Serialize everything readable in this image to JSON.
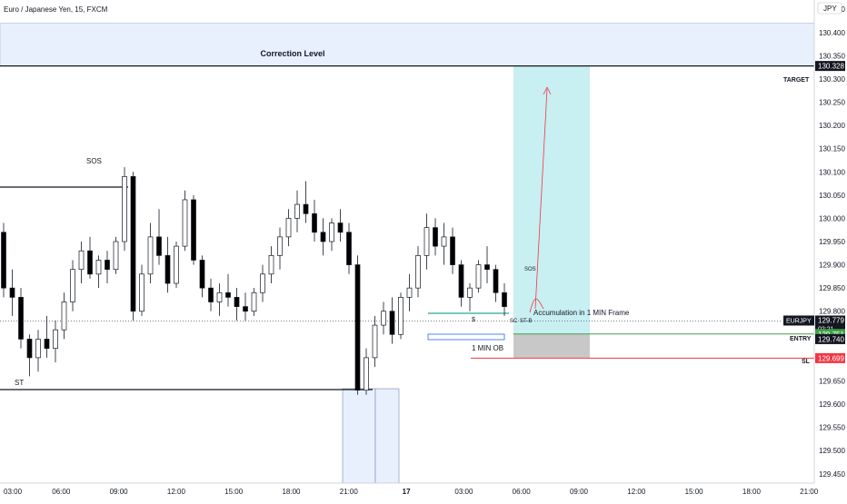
{
  "header": {
    "symbol_title": "Euro / Japanese Yen, 15, FXCM"
  },
  "currency_label": "JPY",
  "colors": {
    "accent": "#2962ff",
    "price_line": "#131722",
    "entry_green": "#43a047",
    "stop_red": "#f23645",
    "profit_zone": "#c8eff2",
    "loss_zone": "#c8c8c8",
    "correction_zone": "#e8f0fd"
  },
  "chart_data": {
    "type": "candlestick",
    "title": "Euro / Japanese Yen, 15, FXCM",
    "ylim": [
      129.43,
      130.47
    ],
    "ylabel": "JPY",
    "y_ticks": [
      "130.450",
      "130.400",
      "130.350",
      "130.300",
      "130.250",
      "130.200",
      "130.150",
      "130.100",
      "130.050",
      "130.000",
      "129.950",
      "129.900",
      "129.850",
      "129.800",
      "129.750",
      "129.700",
      "129.650",
      "129.600",
      "129.550",
      "129.500",
      "129.450"
    ],
    "x_ticks": [
      "03:00",
      "06:00",
      "09:00",
      "12:00",
      "15:00",
      "18:00",
      "21:00",
      "17",
      "03:00",
      "06:00",
      "09:00",
      "12:00",
      "15:00",
      "18:00",
      "21:00"
    ],
    "candles_ohlc": [
      [
        129.97,
        129.99,
        129.83,
        129.85
      ],
      [
        129.85,
        129.89,
        129.79,
        129.83
      ],
      [
        129.83,
        129.85,
        129.72,
        129.74
      ],
      [
        129.74,
        129.75,
        129.66,
        129.7
      ],
      [
        129.7,
        129.76,
        129.67,
        129.74
      ],
      [
        129.74,
        129.79,
        129.7,
        129.72
      ],
      [
        129.72,
        129.78,
        129.69,
        129.76
      ],
      [
        129.76,
        129.84,
        129.74,
        129.82
      ],
      [
        129.82,
        129.91,
        129.8,
        129.89
      ],
      [
        129.89,
        129.95,
        129.86,
        129.93
      ],
      [
        129.93,
        129.96,
        129.87,
        129.88
      ],
      [
        129.88,
        129.92,
        129.85,
        129.91
      ],
      [
        129.91,
        129.93,
        129.86,
        129.89
      ],
      [
        129.89,
        129.96,
        129.88,
        129.95
      ],
      [
        129.95,
        130.11,
        129.93,
        130.09
      ],
      [
        130.09,
        130.1,
        129.78,
        129.8
      ],
      [
        129.8,
        129.9,
        129.79,
        129.88
      ],
      [
        129.88,
        129.99,
        129.86,
        129.96
      ],
      [
        129.96,
        130.02,
        129.9,
        129.92
      ],
      [
        129.92,
        129.96,
        129.84,
        129.86
      ],
      [
        129.86,
        129.95,
        129.85,
        129.94
      ],
      [
        129.94,
        130.06,
        129.93,
        130.04
      ],
      [
        130.04,
        130.05,
        129.9,
        129.91
      ],
      [
        129.91,
        129.92,
        129.83,
        129.85
      ],
      [
        129.85,
        129.87,
        129.8,
        129.82
      ],
      [
        129.82,
        129.86,
        129.79,
        129.84
      ],
      [
        129.84,
        129.88,
        129.81,
        129.83
      ],
      [
        129.83,
        129.85,
        129.78,
        129.81
      ],
      [
        129.81,
        129.84,
        129.78,
        129.8
      ],
      [
        129.8,
        129.85,
        129.79,
        129.84
      ],
      [
        129.84,
        129.9,
        129.82,
        129.88
      ],
      [
        129.88,
        129.94,
        129.86,
        129.92
      ],
      [
        129.92,
        129.98,
        129.89,
        129.96
      ],
      [
        129.96,
        130.02,
        129.94,
        130.0
      ],
      [
        130.0,
        130.06,
        129.97,
        130.03
      ],
      [
        130.03,
        130.08,
        129.99,
        130.01
      ],
      [
        130.01,
        130.04,
        129.95,
        129.97
      ],
      [
        129.97,
        130.0,
        129.92,
        129.95
      ],
      [
        129.95,
        130.0,
        129.93,
        129.99
      ],
      [
        129.99,
        130.02,
        129.95,
        129.97
      ],
      [
        129.97,
        129.99,
        129.88,
        129.9
      ],
      [
        129.9,
        129.92,
        129.62,
        129.63
      ],
      [
        129.63,
        129.72,
        129.62,
        129.7
      ],
      [
        129.7,
        129.79,
        129.68,
        129.77
      ],
      [
        129.77,
        129.82,
        129.75,
        129.8
      ],
      [
        129.8,
        129.83,
        129.73,
        129.75
      ],
      [
        129.75,
        129.84,
        129.74,
        129.83
      ],
      [
        129.83,
        129.88,
        129.8,
        129.85
      ],
      [
        129.85,
        129.94,
        129.83,
        129.92
      ],
      [
        129.92,
        130.01,
        129.89,
        129.98
      ],
      [
        129.98,
        130.0,
        129.92,
        129.94
      ],
      [
        129.94,
        129.99,
        129.9,
        129.96
      ],
      [
        129.96,
        129.98,
        129.88,
        129.9
      ],
      [
        129.9,
        129.91,
        129.81,
        129.83
      ],
      [
        129.83,
        129.86,
        129.8,
        129.85
      ],
      [
        129.85,
        129.91,
        129.84,
        129.9
      ],
      [
        129.9,
        129.94,
        129.86,
        129.89
      ],
      [
        129.89,
        129.9,
        129.82,
        129.84
      ],
      [
        129.84,
        129.86,
        129.79,
        129.81
      ]
    ],
    "candle_color_up": "#ffffff",
    "candle_color_down": "#000000",
    "current_price": 129.779,
    "zones": [
      {
        "label": "Correction Level",
        "from": 130.328,
        "to": 130.42
      },
      {
        "label": "",
        "from": 129.751,
        "to": 130.328,
        "kind": "target"
      },
      {
        "label": "",
        "from": 129.699,
        "to": 129.751,
        "kind": "stop"
      }
    ],
    "levels": [
      {
        "label": "TARGET",
        "value": 130.328
      },
      {
        "label": "ENTRY",
        "value": 129.751
      },
      {
        "label": "SL",
        "value": 129.699
      }
    ],
    "price_labels": {
      "eurjpy_symbol": "EURJPY",
      "current": "129.779",
      "countdown": "02:21",
      "entry": "129.751",
      "black": "129.740",
      "stop": "129.699",
      "target": "130.328"
    },
    "annotations": {
      "sos": "SOS",
      "st": "ST",
      "dollar": "$",
      "sc": "SC",
      "st_b": "ST-B",
      "sos_small": "SOS",
      "accumulation": "Accumulation in 1 MIN Frame",
      "one_min_ob": "1 MIN OB",
      "correction": "Correction Level",
      "target": "TARGET",
      "entry": "ENTRY",
      "sl": "SL"
    }
  }
}
